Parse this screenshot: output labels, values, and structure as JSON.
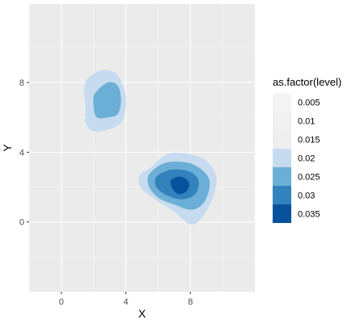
{
  "chart_data": {
    "type": "contour",
    "title": "",
    "xlabel": "X",
    "ylabel": "Y",
    "xlim": [
      -2,
      12
    ],
    "ylim": [
      -4,
      12.5
    ],
    "x_ticks": [
      "0",
      "4",
      "8"
    ],
    "y_ticks": [
      "0",
      "4",
      "8"
    ],
    "x_tick_values": [
      0,
      4,
      8
    ],
    "y_tick_values": [
      0,
      4,
      8
    ],
    "grid": true,
    "panel_background": "#ebebeb",
    "grid_color": "#ffffff",
    "legend": {
      "title": "as.factor(level)",
      "position": "right",
      "entries": [
        {
          "label": "0.005",
          "color": "#f4f4f4"
        },
        {
          "label": "0.01",
          "color": "#f1f1f1"
        },
        {
          "label": "0.015",
          "color": "#eeeeee"
        },
        {
          "label": "0.02",
          "color": "#c6dbef"
        },
        {
          "label": "0.025",
          "color": "#6baed6"
        },
        {
          "label": "0.03",
          "color": "#3182bd"
        },
        {
          "label": "0.035",
          "color": "#08519c"
        }
      ]
    },
    "clusters": [
      {
        "name": "upper-left",
        "center": [
          2.6,
          7.4
        ],
        "bands": [
          {
            "level": "0.02",
            "color": "#c6dbef",
            "points": [
              [
                1.6,
                8.2
              ],
              [
                2.5,
                8.7
              ],
              [
                3.4,
                8.5
              ],
              [
                3.9,
                7.6
              ],
              [
                4.0,
                6.6
              ],
              [
                3.7,
                5.7
              ],
              [
                2.9,
                5.3
              ],
              [
                2.0,
                5.2
              ],
              [
                1.5,
                5.7
              ],
              [
                1.5,
                6.7
              ],
              [
                1.4,
                7.5
              ]
            ]
          },
          {
            "level": "0.025",
            "color": "#6baed6",
            "points": [
              [
                2.1,
                7.4
              ],
              [
                2.9,
                8.0
              ],
              [
                3.5,
                7.8
              ],
              [
                3.7,
                7.0
              ],
              [
                3.5,
                6.2
              ],
              [
                2.9,
                6.0
              ],
              [
                2.2,
                6.0
              ],
              [
                2.0,
                6.7
              ]
            ]
          }
        ]
      },
      {
        "name": "lower-right",
        "center": [
          7.4,
          2.2
        ],
        "bands": [
          {
            "level": "0.02",
            "color": "#c6dbef",
            "points": [
              [
                5.5,
                3.1
              ],
              [
                6.6,
                3.9
              ],
              [
                7.9,
                3.9
              ],
              [
                9.0,
                3.5
              ],
              [
                9.6,
                2.6
              ],
              [
                9.4,
                1.4
              ],
              [
                8.6,
                0.1
              ],
              [
                7.9,
                -0.1
              ],
              [
                7.0,
                0.6
              ],
              [
                5.8,
                1.3
              ],
              [
                4.9,
                2.0
              ],
              [
                4.9,
                2.7
              ]
            ]
          },
          {
            "level": "0.025",
            "color": "#6baed6",
            "points": [
              [
                5.5,
                2.8
              ],
              [
                6.5,
                3.4
              ],
              [
                7.8,
                3.4
              ],
              [
                8.7,
                3.0
              ],
              [
                9.2,
                2.3
              ],
              [
                8.9,
                1.2
              ],
              [
                8.1,
                0.7
              ],
              [
                7.0,
                1.0
              ],
              [
                6.0,
                1.4
              ],
              [
                5.4,
                2.1
              ]
            ]
          },
          {
            "level": "0.03",
            "color": "#3182bd",
            "points": [
              [
                5.9,
                2.6
              ],
              [
                6.8,
                3.0
              ],
              [
                7.9,
                2.9
              ],
              [
                8.5,
                2.4
              ],
              [
                8.3,
                1.6
              ],
              [
                7.5,
                1.3
              ],
              [
                6.6,
                1.5
              ],
              [
                5.9,
                2.0
              ]
            ]
          },
          {
            "level": "0.035",
            "color": "#08519c",
            "points": [
              [
                6.8,
                2.4
              ],
              [
                7.4,
                2.6
              ],
              [
                7.9,
                2.3
              ],
              [
                7.8,
                1.8
              ],
              [
                7.3,
                1.6
              ],
              [
                6.9,
                1.9
              ]
            ]
          }
        ]
      }
    ]
  }
}
